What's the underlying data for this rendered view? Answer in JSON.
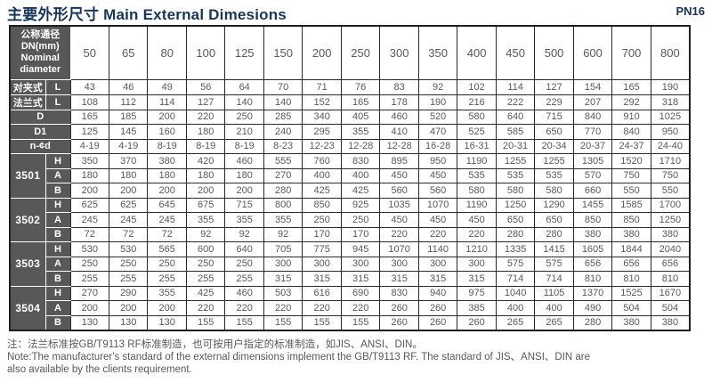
{
  "page": {
    "title": "主要外形尺寸 Main External Dimesions",
    "pressure_rating": "PN16",
    "accent_color": "#17365D",
    "label_cell_color": "#57585A",
    "text_color": "#58595B"
  },
  "table": {
    "corner_lines": [
      "公称通径",
      "DN(mm)",
      "Nominal",
      "diameter"
    ],
    "dn_columns": [
      "50",
      "65",
      "80",
      "100",
      "125",
      "150",
      "200",
      "250",
      "300",
      "350",
      "400",
      "450",
      "500",
      "600",
      "700",
      "800"
    ],
    "dim_rows": [
      {
        "label": "对夹式",
        "sub": "L",
        "merged": false,
        "values": [
          "43",
          "46",
          "49",
          "56",
          "64",
          "70",
          "71",
          "76",
          "83",
          "92",
          "102",
          "114",
          "127",
          "154",
          "165",
          "190"
        ]
      },
      {
        "label": "法兰式",
        "sub": "L",
        "merged": false,
        "values": [
          "108",
          "112",
          "114",
          "127",
          "140",
          "140",
          "152",
          "165",
          "178",
          "190",
          "216",
          "222",
          "229",
          "207",
          "292",
          "318"
        ]
      },
      {
        "label": "D",
        "sub": "",
        "merged": true,
        "values": [
          "165",
          "185",
          "200",
          "220",
          "250",
          "285",
          "340",
          "405",
          "460",
          "520",
          "580",
          "640",
          "715",
          "840",
          "910",
          "1025"
        ]
      },
      {
        "label": "D1",
        "sub": "",
        "merged": true,
        "values": [
          "125",
          "145",
          "160",
          "180",
          "210",
          "240",
          "295",
          "355",
          "410",
          "470",
          "525",
          "585",
          "650",
          "770",
          "840",
          "950"
        ]
      },
      {
        "label": "n-¢d",
        "sub": "",
        "merged": true,
        "values": [
          "4-19",
          "4-19",
          "8-19",
          "8-19",
          "8-19",
          "8-23",
          "12-23",
          "12-28",
          "12-28",
          "16-28",
          "16-31",
          "20-31",
          "20-34",
          "20-37",
          "24-37",
          "24-40"
        ]
      }
    ],
    "model_groups": [
      {
        "model": "3501",
        "rows": [
          {
            "sub": "H",
            "values": [
              "350",
              "370",
              "380",
              "420",
              "460",
              "555",
              "760",
              "830",
              "895",
              "950",
              "1190",
              "1255",
              "1255",
              "1305",
              "1520",
              "1710"
            ]
          },
          {
            "sub": "A",
            "values": [
              "180",
              "180",
              "180",
              "180",
              "180",
              "270",
              "400",
              "400",
              "450",
              "450",
              "535",
              "535",
              "535",
              "570",
              "750",
              "750"
            ]
          },
          {
            "sub": "B",
            "values": [
              "200",
              "200",
              "200",
              "200",
              "200",
              "280",
              "425",
              "425",
              "560",
              "560",
              "580",
              "580",
              "580",
              "660",
              "550",
              "550"
            ]
          }
        ]
      },
      {
        "model": "3502",
        "rows": [
          {
            "sub": "H",
            "values": [
              "625",
              "625",
              "645",
              "675",
              "715",
              "800",
              "850",
              "925",
              "1035",
              "1070",
              "1190",
              "1250",
              "1290",
              "1455",
              "1585",
              "1700"
            ]
          },
          {
            "sub": "A",
            "values": [
              "245",
              "245",
              "245",
              "355",
              "355",
              "355",
              "250",
              "250",
              "450",
              "450",
              "450",
              "650",
              "650",
              "850",
              "850",
              "1250"
            ]
          },
          {
            "sub": "B",
            "values": [
              "72",
              "72",
              "72",
              "92",
              "92",
              "92",
              "170",
              "170",
              "220",
              "220",
              "220",
              "280",
              "280",
              "380",
              "380",
              "380"
            ]
          }
        ]
      },
      {
        "model": "3503",
        "rows": [
          {
            "sub": "H",
            "values": [
              "530",
              "530",
              "565",
              "600",
              "640",
              "705",
              "775",
              "945",
              "1070",
              "1140",
              "1210",
              "1335",
              "1415",
              "1605",
              "1844",
              "2040"
            ]
          },
          {
            "sub": "A",
            "values": [
              "250",
              "250",
              "250",
              "250",
              "250",
              "300",
              "300",
              "300",
              "300",
              "300",
              "300",
              "575",
              "575",
              "656",
              "656",
              "656"
            ]
          },
          {
            "sub": "B",
            "values": [
              "255",
              "255",
              "255",
              "255",
              "255",
              "315",
              "315",
              "315",
              "315",
              "315",
              "315",
              "714",
              "714",
              "810",
              "810",
              "810"
            ]
          }
        ]
      },
      {
        "model": "3504",
        "rows": [
          {
            "sub": "H",
            "values": [
              "270",
              "290",
              "355",
              "425",
              "460",
              "503",
              "616",
              "690",
              "830",
              "940",
              "975",
              "1040",
              "1105",
              "1370",
              "1525",
              "1670"
            ]
          },
          {
            "sub": "A",
            "values": [
              "200",
              "200",
              "200",
              "220",
              "220",
              "220",
              "220",
              "220",
              "260",
              "260",
              "385",
              "400",
              "400",
              "490",
              "504",
              "504"
            ]
          },
          {
            "sub": "B",
            "values": [
              "130",
              "130",
              "130",
              "155",
              "155",
              "155",
              "155",
              "155",
              "260",
              "260",
              "260",
              "265",
              "265",
              "280",
              "380",
              "380"
            ]
          }
        ]
      }
    ]
  },
  "notes": {
    "cn": "注：法兰标准按GB/T9113 RF标准制造，也可按用户指定的标准制造，如JIS、ANSI、DIN。",
    "en_line1": "Note:The manufacturer's standard of the external dimensions implement the GB/T9113 RF. The standard of JIS、ANSI、DIN are",
    "en_line2": "also available by the clients requirement."
  }
}
